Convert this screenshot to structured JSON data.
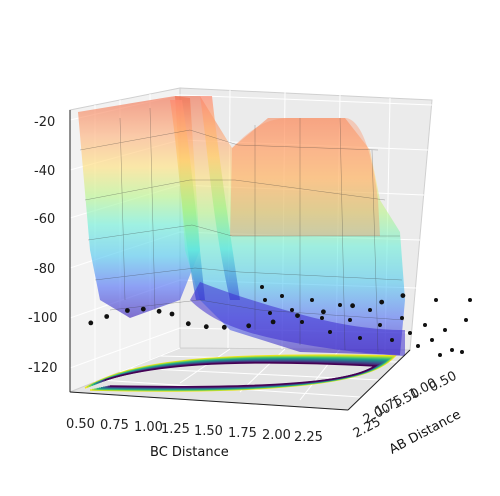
{
  "chart_data": {
    "type": "surface3d",
    "title": "",
    "xlabel": "BC Distance",
    "ylabel": "AB Distance",
    "zlabel": "",
    "x_ticks": [
      "0.50",
      "0.75",
      "1.00",
      "1.25",
      "1.50",
      "1.75",
      "2.00",
      "2.25"
    ],
    "y_ticks": [
      "0.50",
      "1.00",
      "1.50",
      "1.75",
      "2.00",
      "2.25"
    ],
    "z_ticks": [
      "-20",
      "-40",
      "-60",
      "-80",
      "-100",
      "-120"
    ],
    "xlim": [
      0.5,
      2.25
    ],
    "ylim": [
      0.5,
      2.25
    ],
    "zlim": [
      -135,
      -20
    ],
    "colormap_surface": "jet",
    "colormap_contour": "viridis",
    "grid": true,
    "trajectory_points": [
      {
        "x": 0.62,
        "y": 2.2,
        "z": -107
      },
      {
        "x": 0.72,
        "y": 2.2,
        "z": -104
      },
      {
        "x": 0.85,
        "y": 2.2,
        "z": -101
      },
      {
        "x": 0.95,
        "y": 2.2,
        "z": -100
      },
      {
        "x": 1.05,
        "y": 2.2,
        "z": -100.5
      },
      {
        "x": 1.12,
        "y": 2.15,
        "z": -102
      },
      {
        "x": 1.2,
        "y": 2.05,
        "z": -107
      },
      {
        "x": 1.28,
        "y": 1.9,
        "z": -110
      },
      {
        "x": 1.36,
        "y": 1.75,
        "z": -112
      },
      {
        "x": 1.48,
        "y": 1.6,
        "z": -113
      },
      {
        "x": 1.6,
        "y": 1.45,
        "z": -113
      },
      {
        "x": 1.72,
        "y": 1.3,
        "z": -112
      },
      {
        "x": 1.85,
        "y": 1.15,
        "z": -112
      },
      {
        "x": 2.0,
        "y": 1.0,
        "z": -111
      },
      {
        "x": 2.15,
        "y": 0.85,
        "z": -111
      },
      {
        "x": 2.25,
        "y": 0.7,
        "z": -110
      }
    ]
  }
}
